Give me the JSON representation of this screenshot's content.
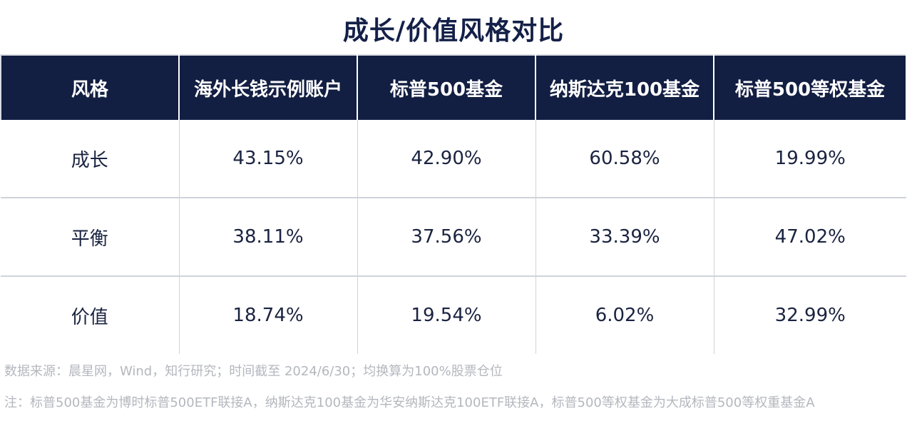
{
  "title": "成长/价值风格对比",
  "table": {
    "headers": [
      "风格",
      "海外长钱示例账户",
      "标普500基金",
      "纳斯达克100基金",
      "标普500等权基金"
    ],
    "rows": [
      [
        "成长",
        "43.15%",
        "42.90%",
        "60.58%",
        "19.99%"
      ],
      [
        "平衡",
        "38.11%",
        "37.56%",
        "33.39%",
        "47.02%"
      ],
      [
        "价值",
        "18.74%",
        "19.54%",
        "6.02%",
        "32.99%"
      ]
    ]
  },
  "footnotes": {
    "source": "数据来源：晨星网，Wind，知行研究；时间截至 2024/6/30；均换算为100%股票仓位",
    "note": "注：标普500基金为博时标普500ETF联接A，纳斯达克100基金为华安纳斯达克100ETF联接A，标普500等权基金为大成标普500等权重基金A"
  },
  "colors": {
    "header_bg": "#121e42",
    "header_text": "#ffffff",
    "body_text": "#1a2340",
    "footnote_text": "#b4b7be"
  }
}
